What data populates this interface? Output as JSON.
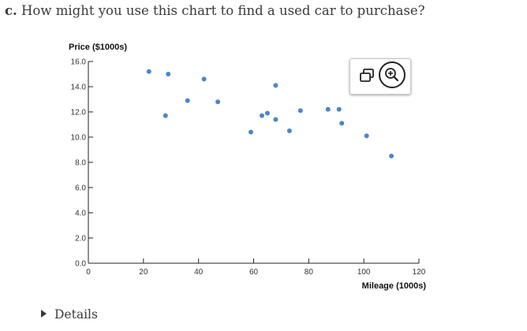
{
  "question": {
    "label": "c.",
    "text": "How might you use this chart to find a used car to purchase?"
  },
  "toolbar": {
    "copy_icon": "copy-windows-icon",
    "zoom_icon": "zoom-in-icon"
  },
  "details": {
    "label": "Details"
  },
  "chart_data": {
    "type": "scatter",
    "xlabel": "Mileage (1000s)",
    "ylabel": "Price ($1000s)",
    "xlim": [
      0,
      120
    ],
    "ylim": [
      0,
      16
    ],
    "xticks": [
      0,
      20,
      40,
      60,
      80,
      100,
      120
    ],
    "xtick_labels": [
      "0",
      "20",
      "40",
      "60",
      "80",
      "100",
      "120"
    ],
    "yticks": [
      0,
      2,
      4,
      6,
      8,
      10,
      12,
      14,
      16
    ],
    "ytick_labels": [
      "0.0",
      "2.0",
      "4.0",
      "6.0",
      "8.0",
      "10.0",
      "12.0",
      "14.0",
      "16.0"
    ],
    "grid": false,
    "point_color": "#4a86c8",
    "points": [
      {
        "x": 22,
        "y": 15.2
      },
      {
        "x": 28,
        "y": 11.7
      },
      {
        "x": 29,
        "y": 15.0
      },
      {
        "x": 36,
        "y": 12.9
      },
      {
        "x": 42,
        "y": 14.6
      },
      {
        "x": 47,
        "y": 12.8
      },
      {
        "x": 59,
        "y": 10.4
      },
      {
        "x": 63,
        "y": 11.7
      },
      {
        "x": 65,
        "y": 11.9
      },
      {
        "x": 68,
        "y": 14.1
      },
      {
        "x": 68,
        "y": 11.4
      },
      {
        "x": 73,
        "y": 10.5
      },
      {
        "x": 77,
        "y": 12.1
      },
      {
        "x": 87,
        "y": 12.2
      },
      {
        "x": 91,
        "y": 12.2
      },
      {
        "x": 92,
        "y": 11.1
      },
      {
        "x": 101,
        "y": 10.1
      },
      {
        "x": 110,
        "y": 8.5
      }
    ]
  }
}
